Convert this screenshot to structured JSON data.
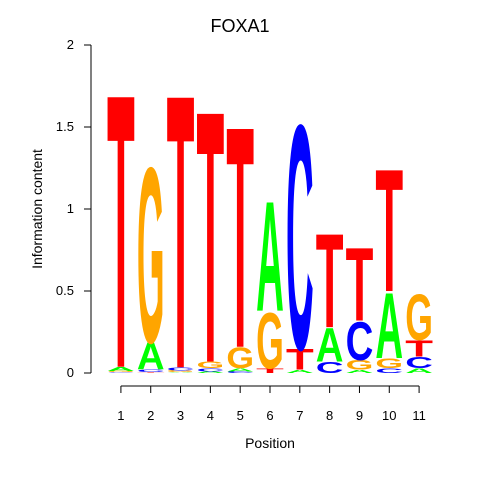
{
  "chart_data": {
    "type": "sequence-logo",
    "title": "FOXA1",
    "xlabel": "Position",
    "ylabel": "Information content",
    "ylim": [
      0,
      2
    ],
    "yticks": [
      "0",
      "0.5",
      "1",
      "1.5",
      "2"
    ],
    "positions": [
      "1",
      "2",
      "3",
      "4",
      "5",
      "6",
      "7",
      "8",
      "9",
      "10",
      "11"
    ],
    "colors": {
      "A": "#00ff00",
      "C": "#0000ff",
      "G": "#ffa500",
      "T": "#ff0000"
    },
    "stacks": [
      {
        "position": "1",
        "letters": [
          [
            "C",
            0.005
          ],
          [
            "G",
            0.008
          ],
          [
            "A",
            0.025
          ],
          [
            "T",
            1.72
          ]
        ]
      },
      {
        "position": "2",
        "letters": [
          [
            "T",
            0.005
          ],
          [
            "C",
            0.015
          ],
          [
            "A",
            0.17
          ],
          [
            "G",
            1.1
          ]
        ]
      },
      {
        "position": "3",
        "letters": [
          [
            "A",
            0.005
          ],
          [
            "G",
            0.01
          ],
          [
            "C",
            0.02
          ],
          [
            "T",
            1.72
          ]
        ]
      },
      {
        "position": "4",
        "letters": [
          [
            "A",
            0.01
          ],
          [
            "C",
            0.02
          ],
          [
            "G",
            0.04
          ],
          [
            "T",
            1.58
          ]
        ]
      },
      {
        "position": "5",
        "letters": [
          [
            "C",
            0.01
          ],
          [
            "A",
            0.02
          ],
          [
            "G",
            0.13
          ],
          [
            "T",
            1.39
          ]
        ]
      },
      {
        "position": "6",
        "letters": [
          [
            "T",
            0.03
          ],
          [
            "G",
            0.35
          ],
          [
            "A",
            0.69
          ]
        ]
      },
      {
        "position": "7",
        "letters": [
          [
            "A",
            0.02
          ],
          [
            "T",
            0.13
          ],
          [
            "C",
            1.41
          ]
        ]
      },
      {
        "position": "8",
        "letters": [
          [
            "C",
            0.07
          ],
          [
            "A",
            0.21
          ],
          [
            "T",
            0.59
          ]
        ]
      },
      {
        "position": "9",
        "letters": [
          [
            "A",
            0.02
          ],
          [
            "G",
            0.06
          ],
          [
            "C",
            0.24
          ],
          [
            "T",
            0.46
          ]
        ]
      },
      {
        "position": "10",
        "letters": [
          [
            "C",
            0.03
          ],
          [
            "G",
            0.06
          ],
          [
            "A",
            0.41
          ],
          [
            "T",
            0.77
          ]
        ]
      },
      {
        "position": "11",
        "letters": [
          [
            "A",
            0.03
          ],
          [
            "C",
            0.07
          ],
          [
            "T",
            0.1
          ],
          [
            "G",
            0.29
          ]
        ]
      }
    ]
  }
}
